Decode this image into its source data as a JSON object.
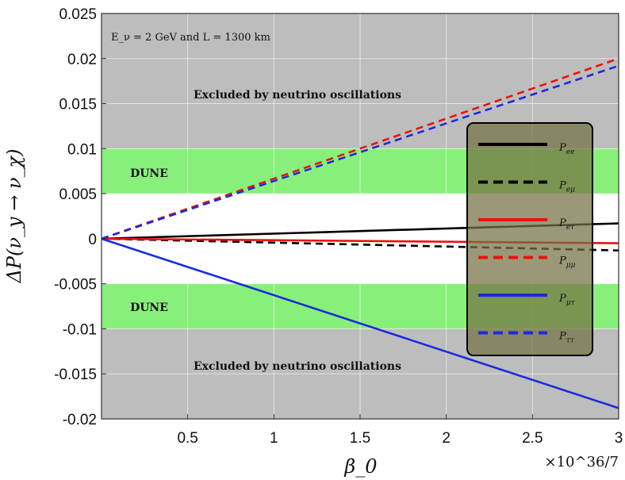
{
  "chart_data": {
    "type": "line",
    "title": "",
    "annotation": "E_ν = 2 GeV and L = 1300 km",
    "xlabel": "β_0",
    "xlabel_multiplier": "×10^36/7",
    "ylabel": "ΔP(ν_y → ν_χ)",
    "xlim": [
      0,
      3
    ],
    "ylim": [
      -0.02,
      0.025
    ],
    "xticks": [
      0.5,
      1,
      1.5,
      2,
      2.5,
      3
    ],
    "xtick_labels": [
      "0.5",
      "1",
      "1.5",
      "2",
      "2.5",
      "3"
    ],
    "yticks": [
      -0.02,
      -0.015,
      -0.01,
      -0.005,
      0,
      0.005,
      0.01,
      0.015,
      0.02,
      0.025
    ],
    "ytick_labels": [
      "-0.02",
      "-0.015",
      "-0.01",
      "-0.005",
      "0",
      "0.005",
      "0.01",
      "0.015",
      "0.02",
      "0.025"
    ],
    "grid": true,
    "bands": [
      {
        "name": "excluded-top",
        "y0": 0.01,
        "y1": 0.025,
        "color": "#bdbdbd",
        "label": "Excluded by neutrino oscillations"
      },
      {
        "name": "dune-top",
        "y0": 0.005,
        "y1": 0.01,
        "color": "#88f07a",
        "label": "DUNE"
      },
      {
        "name": "dune-bottom",
        "y0": -0.01,
        "y1": -0.005,
        "color": "#88f07a",
        "label": "DUNE"
      },
      {
        "name": "excluded-bottom",
        "y0": -0.02,
        "y1": -0.01,
        "color": "#bdbdbd",
        "label": "Excluded by neutrino oscillations"
      }
    ],
    "series": [
      {
        "name": "P_ee",
        "label": "P",
        "sub": "ee",
        "color": "#000000",
        "dash": false,
        "x": [
          0,
          3
        ],
        "y": [
          0,
          0.0017
        ]
      },
      {
        "name": "P_eμ",
        "label": "P",
        "sub": "eμ",
        "color": "#000000",
        "dash": true,
        "x": [
          0,
          3
        ],
        "y": [
          0,
          -0.0013
        ]
      },
      {
        "name": "P_eτ",
        "label": "P",
        "sub": "eτ",
        "color": "#e8130f",
        "dash": false,
        "x": [
          0,
          3
        ],
        "y": [
          0,
          -0.0005
        ]
      },
      {
        "name": "P_μμ",
        "label": "P",
        "sub": "μμ",
        "color": "#e8130f",
        "dash": true,
        "x": [
          0,
          3
        ],
        "y": [
          0,
          0.02
        ]
      },
      {
        "name": "P_μτ",
        "label": "P",
        "sub": "μτ",
        "color": "#1b2bdc",
        "dash": false,
        "x": [
          0,
          3
        ],
        "y": [
          0,
          -0.0188
        ]
      },
      {
        "name": "P_ττ",
        "label": "P",
        "sub": "ττ",
        "color": "#1b2bdc",
        "dash": true,
        "x": [
          0,
          3
        ],
        "y": [
          0,
          0.0192
        ]
      }
    ],
    "legend_position": "right"
  }
}
